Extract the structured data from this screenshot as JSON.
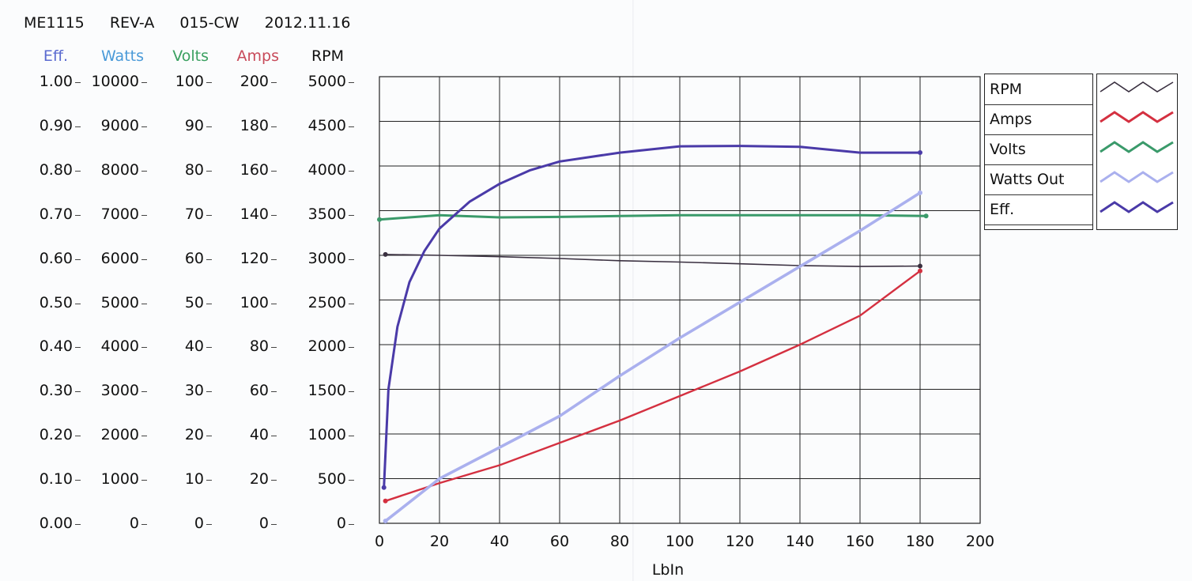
{
  "header": {
    "model": "ME1115",
    "rev": "REV-A",
    "code": "015-CW",
    "date": "2012.11.16"
  },
  "axis_titles": [
    {
      "label": "Eff.",
      "color": "#5a6ad0"
    },
    {
      "label": "Watts",
      "color": "#4a9ad8"
    },
    {
      "label": "Volts",
      "color": "#3aa060"
    },
    {
      "label": "Amps",
      "color": "#c84a5a"
    },
    {
      "label": "RPM",
      "color": "#111111"
    }
  ],
  "axis_ticks": {
    "eff": [
      "1.00",
      "0.90",
      "0.80",
      "0.70",
      "0.60",
      "0.50",
      "0.40",
      "0.30",
      "0.20",
      "0.10",
      "0.00"
    ],
    "watts": [
      "10000",
      "9000",
      "8000",
      "7000",
      "6000",
      "5000",
      "4000",
      "3000",
      "2000",
      "1000",
      "0"
    ],
    "volts": [
      "100",
      "90",
      "80",
      "70",
      "60",
      "50",
      "40",
      "30",
      "20",
      "10",
      "0"
    ],
    "amps": [
      "200",
      "180",
      "160",
      "140",
      "120",
      "100",
      "80",
      "60",
      "40",
      "20",
      "0"
    ],
    "rpm": [
      "5000",
      "4500",
      "4000",
      "3500",
      "3000",
      "2500",
      "2000",
      "1500",
      "1000",
      "500",
      "0"
    ]
  },
  "chart_data": {
    "type": "line",
    "xlabel": "LbIn",
    "xlim": [
      0,
      200
    ],
    "x_ticks": [
      "0",
      "20",
      "40",
      "60",
      "80",
      "100",
      "120",
      "140",
      "160",
      "180",
      "200"
    ],
    "grid": true,
    "legend_placement": "right",
    "axes": {
      "Eff.": [
        0,
        1
      ],
      "Watts": [
        0,
        10000
      ],
      "Volts": [
        0,
        100
      ],
      "Amps": [
        0,
        200
      ],
      "RPM": [
        0,
        5000
      ]
    },
    "series": [
      {
        "name": "RPM",
        "axis": "RPM",
        "color": "#3a3040",
        "x": [
          2,
          20,
          40,
          60,
          80,
          100,
          120,
          140,
          160,
          180
        ],
        "values": [
          3010,
          3000,
          2985,
          2965,
          2940,
          2925,
          2905,
          2885,
          2875,
          2880
        ]
      },
      {
        "name": "Amps",
        "axis": "Amps",
        "color": "#d43040",
        "x": [
          2,
          20,
          40,
          60,
          80,
          100,
          120,
          140,
          160,
          180
        ],
        "values": [
          10,
          18,
          26,
          36,
          46,
          57,
          68,
          80,
          93,
          113
        ]
      },
      {
        "name": "Volts",
        "axis": "Volts",
        "color": "#3a9a6a",
        "x": [
          0,
          10,
          20,
          40,
          60,
          80,
          100,
          120,
          140,
          160,
          182
        ],
        "values": [
          68,
          68.5,
          69,
          68.5,
          68.6,
          68.8,
          69,
          69,
          69,
          69,
          68.8
        ]
      },
      {
        "name": "Watts Out",
        "axis": "Watts",
        "color": "#aab0ee",
        "x": [
          2,
          20,
          40,
          60,
          80,
          100,
          120,
          140,
          160,
          180
        ],
        "values": [
          50,
          1000,
          1700,
          2400,
          3300,
          4150,
          4950,
          5750,
          6550,
          7400
        ]
      },
      {
        "name": "Eff.",
        "axis": "Eff.",
        "color": "#4a3aa8",
        "x": [
          1.5,
          3,
          6,
          10,
          15,
          20,
          30,
          40,
          50,
          60,
          80,
          100,
          120,
          140,
          160,
          180
        ],
        "values": [
          0.08,
          0.3,
          0.44,
          0.54,
          0.61,
          0.66,
          0.72,
          0.76,
          0.79,
          0.81,
          0.83,
          0.844,
          0.845,
          0.843,
          0.83,
          0.83
        ]
      }
    ]
  }
}
